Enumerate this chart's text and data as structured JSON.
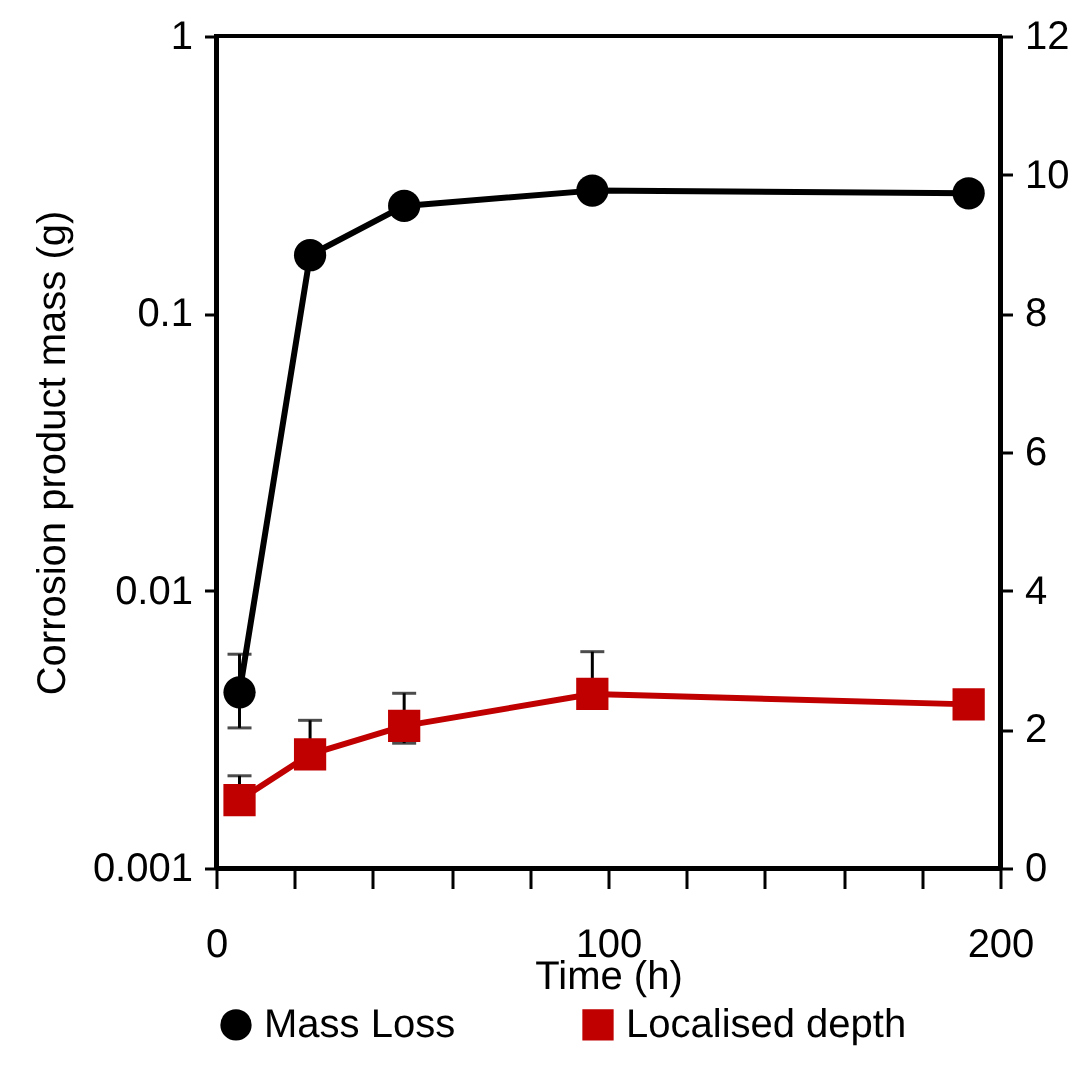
{
  "chart_data": {
    "type": "line",
    "xlabel": "Time (h)",
    "ylabel": "Corrosion product mass (g)",
    "xlim": [
      0,
      200
    ],
    "xticks": [
      0,
      {
        "value": 20,
        "label": null
      },
      {
        "value": 40,
        "label": null
      },
      {
        "value": 60,
        "label": null
      },
      {
        "value": 80,
        "label": null
      },
      100,
      {
        "value": 120,
        "label": null
      },
      {
        "value": 140,
        "label": null
      },
      {
        "value": 160,
        "label": null
      },
      {
        "value": 180,
        "label": null
      },
      200
    ],
    "ylim": [
      0.001,
      1
    ],
    "yticks": [
      0.001,
      0.01,
      0.1,
      1
    ],
    "log": "y",
    "y2lim": [
      0,
      12
    ],
    "y2ticks": [
      0,
      2,
      4,
      6,
      8,
      10,
      12
    ],
    "grid": false,
    "legend": "bottom",
    "series": [
      {
        "name": "Mass Loss",
        "color": "#000000",
        "marker": "circle",
        "x": [
          6,
          24,
          48,
          96,
          192
        ],
        "values": [
          0.0043,
          0.162,
          0.244,
          0.277,
          0.271
        ],
        "errors": [
          [
            0.0032,
            0.0059
          ],
          null,
          null,
          null,
          null
        ]
      },
      {
        "name": "Localised depth",
        "color": "#c00000",
        "marker": "square",
        "axis": "y2",
        "x": [
          6,
          24,
          48,
          96,
          192
        ],
        "values": [
          0.98,
          1.64,
          2.05,
          2.51,
          2.36
        ],
        "errors": [
          [
            0.98,
            1.33
          ],
          [
            1.44,
            2.13
          ],
          [
            1.8,
            2.52
          ],
          [
            2.32,
            3.12
          ],
          null
        ]
      }
    ]
  }
}
